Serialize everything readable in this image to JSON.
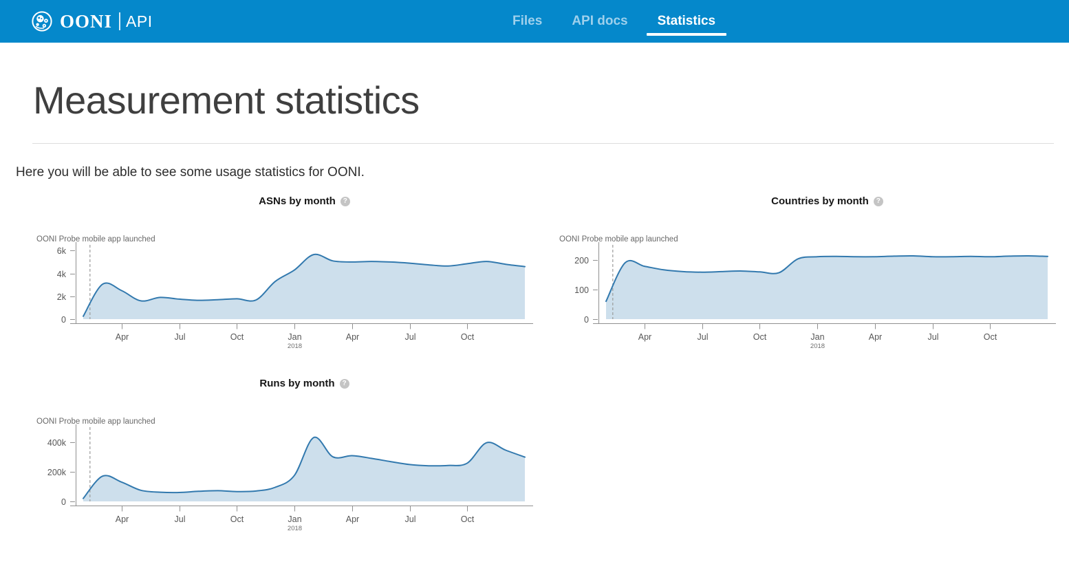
{
  "colors": {
    "header_bg": "#0588cb",
    "nav_active": "#ffffff",
    "nav_inactive": "#9ed0ec",
    "line": "#3279ae",
    "area_fill": "#cddfec",
    "axis": "#8f8f8f",
    "tick_label": "#565656",
    "annotation_text": "#686868",
    "dashed_line": "#9a9a9a",
    "help_icon_bg": "#c4c4c4"
  },
  "header": {
    "brand": "OONI",
    "brand_sub": "API",
    "nav": [
      {
        "label": "Files",
        "active": false
      },
      {
        "label": "API docs",
        "active": false
      },
      {
        "label": "Statistics",
        "active": true
      }
    ]
  },
  "page": {
    "title": "Measurement statistics",
    "intro": "Here you will be able to see some usage statistics for OONI."
  },
  "chart_data": [
    {
      "type": "area",
      "title": "ASNs by month",
      "annotation": "OONI Probe mobile app launched",
      "annotation_line_x": "2017-02",
      "legend": null,
      "grid": false,
      "x": [
        "2017-02",
        "2017-03",
        "2017-04",
        "2017-05",
        "2017-06",
        "2017-07",
        "2017-08",
        "2017-09",
        "2017-10",
        "2017-11",
        "2017-12",
        "2018-01",
        "2018-02",
        "2018-03",
        "2018-04",
        "2018-05",
        "2018-06",
        "2018-07",
        "2018-08",
        "2018-09",
        "2018-10",
        "2018-11",
        "2018-12",
        "2019-01"
      ],
      "values": [
        250,
        3050,
        2500,
        1600,
        1900,
        1750,
        1650,
        1700,
        1780,
        1680,
        3300,
        4300,
        5650,
        5100,
        5000,
        5050,
        5000,
        4900,
        4750,
        4650,
        4850,
        5050,
        4800,
        4600
      ],
      "ylim": [
        0,
        6500
      ],
      "y_ticks": [
        {
          "value": 0,
          "label": "0"
        },
        {
          "value": 2000,
          "label": "2k"
        },
        {
          "value": 4000,
          "label": "4k"
        },
        {
          "value": 6000,
          "label": "6k"
        }
      ],
      "x_ticks": [
        {
          "x": "2017-04",
          "label": "Apr"
        },
        {
          "x": "2017-07",
          "label": "Jul"
        },
        {
          "x": "2017-10",
          "label": "Oct"
        },
        {
          "x": "2018-01",
          "label": "Jan",
          "sublabel": "2018"
        },
        {
          "x": "2018-04",
          "label": "Apr"
        },
        {
          "x": "2018-07",
          "label": "Jul"
        },
        {
          "x": "2018-10",
          "label": "Oct"
        }
      ]
    },
    {
      "type": "area",
      "title": "Countries by month",
      "annotation": "OONI Probe mobile app launched",
      "annotation_line_x": "2017-02",
      "legend": null,
      "grid": false,
      "x": [
        "2017-02",
        "2017-03",
        "2017-04",
        "2017-05",
        "2017-06",
        "2017-07",
        "2017-08",
        "2017-09",
        "2017-10",
        "2017-11",
        "2017-12",
        "2018-01",
        "2018-02",
        "2018-03",
        "2018-04",
        "2018-05",
        "2018-06",
        "2018-07",
        "2018-08",
        "2018-09",
        "2018-10",
        "2018-11",
        "2018-12",
        "2019-01"
      ],
      "values": [
        60,
        190,
        178,
        166,
        160,
        158,
        160,
        162,
        159,
        156,
        203,
        210,
        211,
        210,
        210,
        212,
        213,
        210,
        210,
        211,
        210,
        212,
        213,
        211
      ],
      "ylim": [
        0,
        250
      ],
      "y_ticks": [
        {
          "value": 0,
          "label": "0"
        },
        {
          "value": 100,
          "label": "100"
        },
        {
          "value": 200,
          "label": "200"
        }
      ],
      "x_ticks": [
        {
          "x": "2017-04",
          "label": "Apr"
        },
        {
          "x": "2017-07",
          "label": "Jul"
        },
        {
          "x": "2017-10",
          "label": "Oct"
        },
        {
          "x": "2018-01",
          "label": "Jan",
          "sublabel": "2018"
        },
        {
          "x": "2018-04",
          "label": "Apr"
        },
        {
          "x": "2018-07",
          "label": "Jul"
        },
        {
          "x": "2018-10",
          "label": "Oct"
        }
      ]
    },
    {
      "type": "area",
      "title": "Runs by month",
      "annotation": "OONI Probe mobile app launched",
      "annotation_line_x": "2017-02",
      "legend": null,
      "grid": false,
      "x": [
        "2017-02",
        "2017-03",
        "2017-04",
        "2017-05",
        "2017-06",
        "2017-07",
        "2017-08",
        "2017-09",
        "2017-10",
        "2017-11",
        "2017-12",
        "2018-01",
        "2018-02",
        "2018-03",
        "2018-04",
        "2018-05",
        "2018-06",
        "2018-07",
        "2018-08",
        "2018-09",
        "2018-10",
        "2018-11",
        "2018-12",
        "2019-01"
      ],
      "values": [
        20000,
        170000,
        130000,
        75000,
        62000,
        60000,
        68000,
        72000,
        66000,
        70000,
        95000,
        175000,
        430000,
        300000,
        308000,
        290000,
        268000,
        248000,
        240000,
        242000,
        258000,
        395000,
        345000,
        298000
      ],
      "ylim": [
        0,
        500000
      ],
      "y_ticks": [
        {
          "value": 0,
          "label": "0"
        },
        {
          "value": 200000,
          "label": "200k"
        },
        {
          "value": 400000,
          "label": "400k"
        }
      ],
      "x_ticks": [
        {
          "x": "2017-04",
          "label": "Apr"
        },
        {
          "x": "2017-07",
          "label": "Jul"
        },
        {
          "x": "2017-10",
          "label": "Oct"
        },
        {
          "x": "2018-01",
          "label": "Jan",
          "sublabel": "2018"
        },
        {
          "x": "2018-04",
          "label": "Apr"
        },
        {
          "x": "2018-07",
          "label": "Jul"
        },
        {
          "x": "2018-10",
          "label": "Oct"
        }
      ]
    }
  ]
}
